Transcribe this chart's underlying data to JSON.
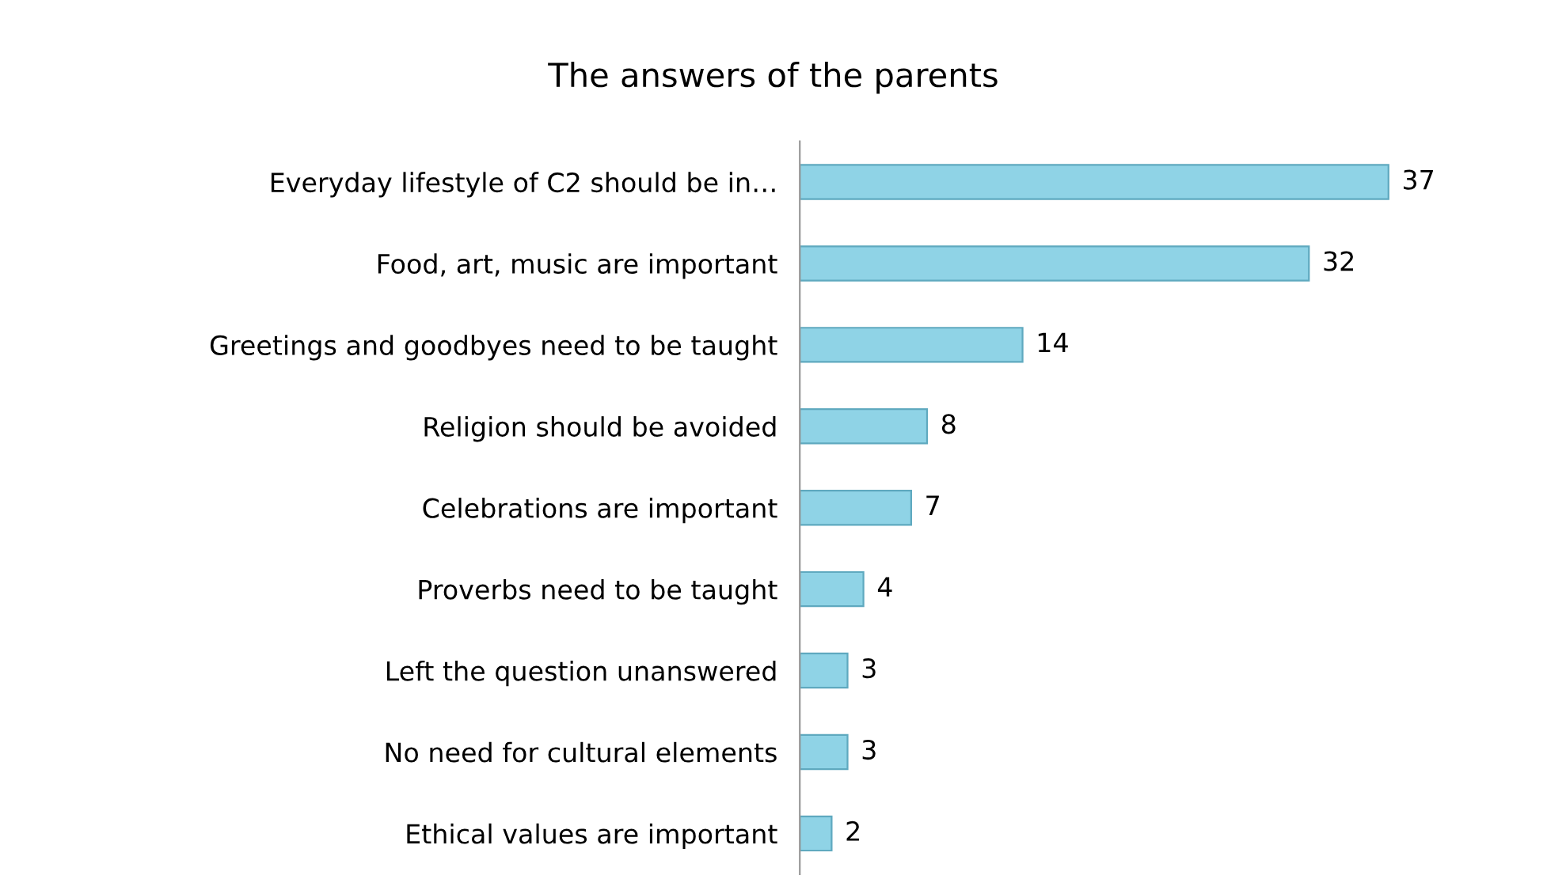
{
  "chart_data": {
    "type": "bar",
    "orientation": "horizontal",
    "title": "The answers of the parents",
    "categories": [
      "Everyday lifestyle of C2 should be in…",
      "Food, art, music are important",
      "Greetings and goodbyes need to be taught",
      "Religion should be avoided",
      "Celebrations are important",
      "Proverbs need to be taught",
      "Left the question unanswered",
      "No need for cultural elements",
      "Ethical values are important"
    ],
    "values": [
      37,
      32,
      14,
      8,
      7,
      4,
      3,
      3,
      2
    ],
    "color": "#8fd3e6",
    "data_labels": true,
    "grid": false,
    "legend": false
  }
}
